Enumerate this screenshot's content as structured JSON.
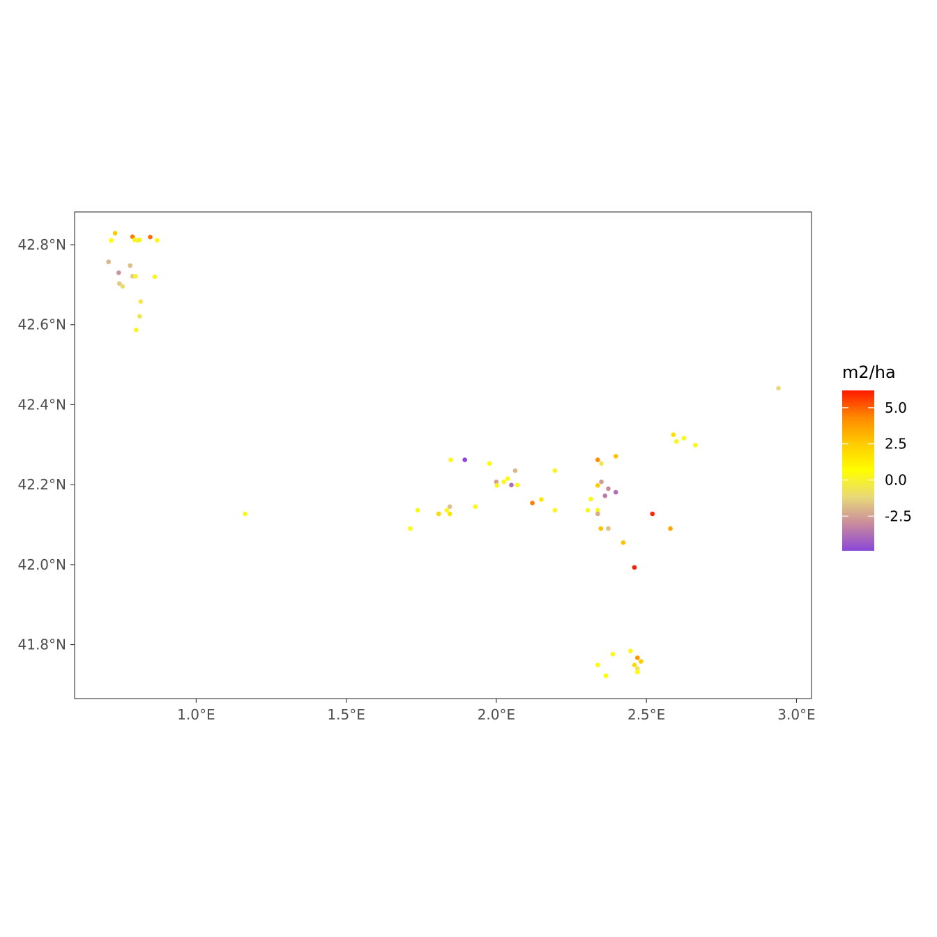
{
  "chart_data": {
    "type": "scatter",
    "title": "",
    "xlabel": "",
    "ylabel": "",
    "xlim": [
      0.595,
      3.05
    ],
    "ylim": [
      41.665,
      42.882
    ],
    "grid": false,
    "legend_placement": "right",
    "x_ticks": [
      {
        "value": 1.0,
        "label": "1.0°E"
      },
      {
        "value": 1.5,
        "label": "1.5°E"
      },
      {
        "value": 2.0,
        "label": "2.0°E"
      },
      {
        "value": 2.5,
        "label": "2.5°E"
      },
      {
        "value": 3.0,
        "label": "3.0°E"
      }
    ],
    "y_ticks": [
      {
        "value": 41.8,
        "label": "41.8°N"
      },
      {
        "value": 42.0,
        "label": "42.0°N"
      },
      {
        "value": 42.2,
        "label": "42.2°N"
      },
      {
        "value": 42.4,
        "label": "42.4°N"
      },
      {
        "value": 42.6,
        "label": "42.6°N"
      },
      {
        "value": 42.8,
        "label": "42.8°N"
      }
    ],
    "colorbar": {
      "title": "m2/ha",
      "min": -4.9,
      "max": 6.2,
      "colors": [
        "#8a46d8",
        "#c88a9e",
        "#e8d87a",
        "#ffff00",
        "#ffcc00",
        "#ff8800",
        "#ff1a00"
      ],
      "ticks": [
        {
          "value": 5.0,
          "label": "5.0"
        },
        {
          "value": 2.5,
          "label": "2.5"
        },
        {
          "value": 0.0,
          "label": "0.0"
        },
        {
          "value": -2.5,
          "label": "-2.5"
        }
      ]
    },
    "points": [
      {
        "lon": 0.73,
        "lat": 42.829,
        "value": 2.5
      },
      {
        "lon": 0.717,
        "lat": 42.811,
        "value": 0.6
      },
      {
        "lon": 0.788,
        "lat": 42.82,
        "value": 4.5
      },
      {
        "lon": 0.795,
        "lat": 42.812,
        "value": 0.1
      },
      {
        "lon": 0.805,
        "lat": 42.811,
        "value": 0.1
      },
      {
        "lon": 0.812,
        "lat": 42.812,
        "value": 0.1
      },
      {
        "lon": 0.847,
        "lat": 42.819,
        "value": 4.8
      },
      {
        "lon": 0.87,
        "lat": 42.811,
        "value": 0.2
      },
      {
        "lon": 0.708,
        "lat": 42.757,
        "value": -2.0
      },
      {
        "lon": 0.78,
        "lat": 42.748,
        "value": -1.8
      },
      {
        "lon": 0.742,
        "lat": 42.73,
        "value": -2.8
      },
      {
        "lon": 0.788,
        "lat": 42.721,
        "value": -1.5
      },
      {
        "lon": 0.798,
        "lat": 42.721,
        "value": 0.0
      },
      {
        "lon": 0.862,
        "lat": 42.72,
        "value": 0.2
      },
      {
        "lon": 0.744,
        "lat": 42.703,
        "value": -1.5
      },
      {
        "lon": 0.755,
        "lat": 42.696,
        "value": -1.0
      },
      {
        "lon": 0.815,
        "lat": 42.658,
        "value": -0.5
      },
      {
        "lon": 0.812,
        "lat": 42.621,
        "value": -0.6
      },
      {
        "lon": 0.8,
        "lat": 42.587,
        "value": 0.2
      },
      {
        "lon": 2.94,
        "lat": 42.441,
        "value": -1.2
      },
      {
        "lon": 2.59,
        "lat": 42.325,
        "value": 1.8
      },
      {
        "lon": 2.6,
        "lat": 42.308,
        "value": 0.2
      },
      {
        "lon": 2.625,
        "lat": 42.316,
        "value": 0.3
      },
      {
        "lon": 2.663,
        "lat": 42.299,
        "value": 0.3
      },
      {
        "lon": 1.848,
        "lat": 42.262,
        "value": 0.3
      },
      {
        "lon": 1.895,
        "lat": 42.262,
        "value": -4.9
      },
      {
        "lon": 1.977,
        "lat": 42.253,
        "value": 0.8
      },
      {
        "lon": 2.063,
        "lat": 42.235,
        "value": -2.0
      },
      {
        "lon": 2.195,
        "lat": 42.235,
        "value": 0.2
      },
      {
        "lon": 2.338,
        "lat": 42.262,
        "value": 4.2
      },
      {
        "lon": 2.35,
        "lat": 42.253,
        "value": -0.5
      },
      {
        "lon": 2.398,
        "lat": 42.271,
        "value": 2.8
      },
      {
        "lon": 2.0,
        "lat": 42.207,
        "value": -2.5
      },
      {
        "lon": 2.025,
        "lat": 42.207,
        "value": 0.2
      },
      {
        "lon": 2.038,
        "lat": 42.215,
        "value": 0.5
      },
      {
        "lon": 2.05,
        "lat": 42.199,
        "value": -3.8
      },
      {
        "lon": 2.07,
        "lat": 42.199,
        "value": 0.3
      },
      {
        "lon": 2.002,
        "lat": 42.198,
        "value": 0.2
      },
      {
        "lon": 2.35,
        "lat": 42.207,
        "value": -2.6
      },
      {
        "lon": 2.338,
        "lat": 42.198,
        "value": 2.5
      },
      {
        "lon": 2.373,
        "lat": 42.19,
        "value": -3.0
      },
      {
        "lon": 2.362,
        "lat": 42.172,
        "value": -3.5
      },
      {
        "lon": 2.398,
        "lat": 42.181,
        "value": -3.8
      },
      {
        "lon": 2.12,
        "lat": 42.154,
        "value": 4.5
      },
      {
        "lon": 2.15,
        "lat": 42.163,
        "value": 1.5
      },
      {
        "lon": 2.315,
        "lat": 42.164,
        "value": 0.3
      },
      {
        "lon": 1.163,
        "lat": 42.127,
        "value": 0.2
      },
      {
        "lon": 1.738,
        "lat": 42.136,
        "value": 0.3
      },
      {
        "lon": 1.845,
        "lat": 42.145,
        "value": -1.8
      },
      {
        "lon": 1.835,
        "lat": 42.136,
        "value": 0.2
      },
      {
        "lon": 1.808,
        "lat": 42.127,
        "value": 2.0
      },
      {
        "lon": 1.845,
        "lat": 42.127,
        "value": 1.6
      },
      {
        "lon": 1.93,
        "lat": 42.145,
        "value": 0.3
      },
      {
        "lon": 2.195,
        "lat": 42.136,
        "value": 0.3
      },
      {
        "lon": 2.305,
        "lat": 42.136,
        "value": 0.2
      },
      {
        "lon": 2.338,
        "lat": 42.136,
        "value": 0.2
      },
      {
        "lon": 2.338,
        "lat": 42.127,
        "value": -2.3
      },
      {
        "lon": 2.52,
        "lat": 42.127,
        "value": 6.0
      },
      {
        "lon": 1.713,
        "lat": 42.09,
        "value": 0.5
      },
      {
        "lon": 2.348,
        "lat": 42.09,
        "value": 2.8
      },
      {
        "lon": 2.373,
        "lat": 42.09,
        "value": -1.8
      },
      {
        "lon": 2.58,
        "lat": 42.09,
        "value": 3.5
      },
      {
        "lon": 2.423,
        "lat": 42.055,
        "value": 2.8
      },
      {
        "lon": 2.46,
        "lat": 41.993,
        "value": 6.2
      },
      {
        "lon": 2.447,
        "lat": 41.784,
        "value": 0.3
      },
      {
        "lon": 2.388,
        "lat": 41.776,
        "value": 0.3
      },
      {
        "lon": 2.47,
        "lat": 41.767,
        "value": 4.0
      },
      {
        "lon": 2.482,
        "lat": 41.758,
        "value": 2.5
      },
      {
        "lon": 2.338,
        "lat": 41.749,
        "value": 0.5
      },
      {
        "lon": 2.46,
        "lat": 41.749,
        "value": 2.0
      },
      {
        "lon": 2.47,
        "lat": 41.74,
        "value": -0.6
      },
      {
        "lon": 2.47,
        "lat": 41.731,
        "value": 0.5
      },
      {
        "lon": 2.365,
        "lat": 41.722,
        "value": 0.6
      }
    ]
  }
}
